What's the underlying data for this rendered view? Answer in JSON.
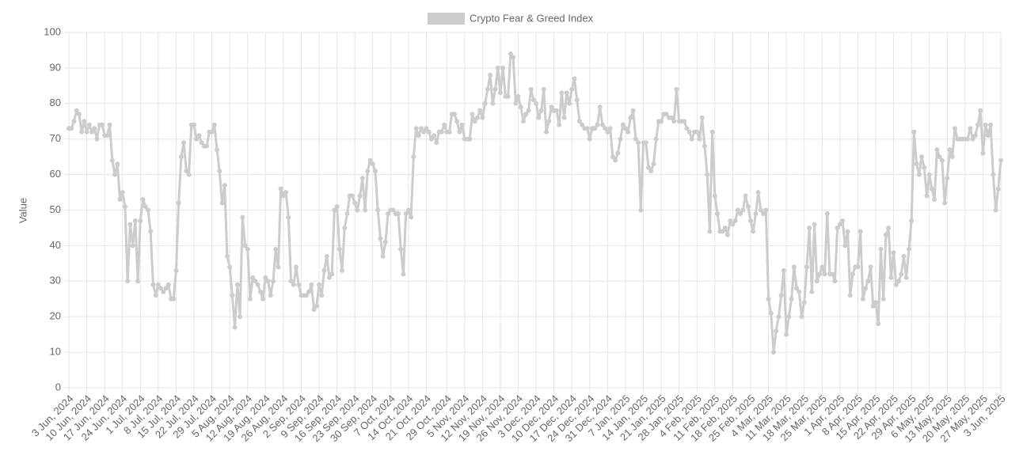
{
  "chart_data": {
    "type": "line",
    "y_label": "Value",
    "ylim": [
      0,
      100
    ],
    "yticks": [
      0,
      10,
      20,
      30,
      40,
      50,
      60,
      70,
      80,
      90,
      100
    ],
    "grid": true,
    "legend": "top",
    "categories": [
      "3 Jun, 2024",
      null,
      null,
      null,
      null,
      null,
      null,
      "10 Jun, 2024",
      null,
      null,
      null,
      null,
      null,
      null,
      "17 Jun, 2024",
      null,
      null,
      null,
      null,
      null,
      null,
      "24 Jun, 2024",
      null,
      null,
      null,
      null,
      null,
      null,
      "1 Jul, 2024",
      null,
      null,
      null,
      null,
      null,
      null,
      "8 Jul, 2024",
      null,
      null,
      null,
      null,
      null,
      null,
      "15 Jul, 2024",
      null,
      null,
      null,
      null,
      null,
      null,
      "22 Jul, 2024",
      null,
      null,
      null,
      null,
      null,
      null,
      "29 Jul, 2024",
      null,
      null,
      null,
      null,
      null,
      null,
      "5 Aug, 2024",
      null,
      null,
      null,
      null,
      null,
      null,
      "12 Aug, 2024",
      null,
      null,
      null,
      null,
      null,
      null,
      "19 Aug, 2024",
      null,
      null,
      null,
      null,
      null,
      null,
      "26 Aug, 2024",
      null,
      null,
      null,
      null,
      null,
      null,
      "2 Sep, 2024",
      null,
      null,
      null,
      null,
      null,
      null,
      "9 Sep, 2024",
      null,
      null,
      null,
      null,
      null,
      null,
      "16 Sep, 2024",
      null,
      null,
      null,
      null,
      null,
      null,
      "23 Sep, 2024",
      null,
      null,
      null,
      null,
      null,
      null,
      "30 Sep, 2024",
      null,
      null,
      null,
      null,
      null,
      null,
      "7 Oct, 2024",
      null,
      null,
      null,
      null,
      null,
      null,
      "14 Oct, 2024",
      null,
      null,
      null,
      null,
      null,
      null,
      "21 Oct, 2024",
      null,
      null,
      null,
      null,
      null,
      null,
      null,
      "29 Oct, 2024",
      null,
      null,
      null,
      null,
      null,
      null,
      "5 Nov, 2024",
      null,
      null,
      null,
      null,
      null,
      null,
      "12 Nov, 2024",
      null,
      null,
      null,
      null,
      null,
      null,
      "19 Nov, 2024",
      null,
      null,
      null,
      null,
      null,
      null,
      "26 Nov, 2024",
      null,
      null,
      null,
      null,
      null,
      null,
      "3 Dec, 2024",
      null,
      null,
      null,
      null,
      null,
      null,
      "10 Dec, 2024",
      null,
      null,
      null,
      null,
      null,
      null,
      "17 Dec, 2024",
      null,
      null,
      null,
      null,
      null,
      null,
      "24 Dec, 2024",
      null,
      null,
      null,
      null,
      null,
      null,
      "31 Dec, 2024",
      null,
      null,
      null,
      null,
      null,
      null,
      "7 Jan, 2025",
      null,
      null,
      null,
      null,
      null,
      null,
      "14 Jan, 2025",
      null,
      null,
      null,
      null,
      null,
      null,
      "21 Jan, 2025",
      null,
      null,
      null,
      null,
      null,
      null,
      "28 Jan, 2025",
      null,
      null,
      null,
      null,
      null,
      null,
      "4 Feb, 2025",
      null,
      null,
      null,
      null,
      null,
      null,
      "11 Feb, 2025",
      null,
      null,
      null,
      null,
      null,
      null,
      "18 Feb, 2025",
      null,
      null,
      null,
      null,
      null,
      null,
      "25 Feb, 2025",
      null,
      null,
      null,
      null,
      null,
      null,
      "4 Mar, 2025",
      null,
      null,
      null,
      null,
      null,
      null,
      "11 Mar, 2025",
      null,
      null,
      null,
      null,
      null,
      null,
      "18 Mar, 2025",
      null,
      null,
      null,
      null,
      null,
      null,
      "25 Mar, 2025",
      null,
      null,
      null,
      null,
      null,
      null,
      "1 Apr, 2025",
      null,
      null,
      null,
      null,
      null,
      null,
      "8 Apr, 2025",
      null,
      null,
      null,
      null,
      null,
      null,
      "15 Apr, 2025",
      null,
      null,
      null,
      null,
      null,
      null,
      "22 Apr, 2025",
      null,
      null,
      null,
      null,
      null,
      null,
      "29 Apr, 2025",
      null,
      null,
      null,
      null,
      null,
      null,
      "6 May, 2025",
      null,
      null,
      null,
      null,
      null,
      null,
      "13 May, 2025",
      null,
      null,
      null,
      null,
      null,
      null,
      "20 May, 2025",
      null,
      null,
      null,
      null,
      null,
      null,
      "27 May, 2025",
      null,
      null,
      null,
      null,
      null,
      null,
      "3 Jun, 2025"
    ],
    "series": [
      {
        "name": "Crypto Fear & Greed Index",
        "color": "#cccccc",
        "values": [
          73,
          73,
          75,
          78,
          77,
          72,
          75,
          72,
          74,
          72,
          73,
          70,
          74,
          74,
          71,
          71,
          74,
          64,
          60,
          63,
          53,
          55,
          51,
          30,
          46,
          40,
          47,
          30,
          47,
          53,
          51,
          50,
          44,
          29,
          26,
          29,
          28,
          27,
          28,
          29,
          25,
          25,
          33,
          52,
          65,
          69,
          61,
          60,
          74,
          74,
          70,
          71,
          69,
          68,
          68,
          72,
          72,
          74,
          67,
          61,
          52,
          57,
          37,
          34,
          26,
          17,
          29,
          20,
          48,
          40,
          39,
          25,
          31,
          30,
          29,
          27,
          25,
          31,
          30,
          26,
          30,
          39,
          34,
          56,
          54,
          55,
          48,
          30,
          29,
          34,
          29,
          26,
          26,
          26,
          27,
          29,
          22,
          23,
          29,
          26,
          33,
          37,
          31,
          32,
          50,
          51,
          39,
          33,
          45,
          49,
          54,
          54,
          52,
          50,
          54,
          59,
          50,
          61,
          64,
          63,
          61,
          50,
          42,
          37,
          41,
          49,
          50,
          50,
          49,
          49,
          39,
          32,
          49,
          50,
          48,
          65,
          73,
          71,
          73,
          72,
          73,
          72,
          70,
          71,
          69,
          72,
          72,
          74,
          72,
          72,
          77,
          77,
          75,
          72,
          74,
          70,
          70,
          70,
          77,
          75,
          76,
          78,
          76,
          80,
          84,
          88,
          80,
          84,
          90,
          83,
          90,
          82,
          82,
          94,
          93,
          80,
          82,
          79,
          75,
          77,
          78,
          84,
          81,
          80,
          76,
          78,
          84,
          72,
          75,
          79,
          78,
          78,
          74,
          83,
          76,
          83,
          80,
          84,
          87,
          81,
          75,
          74,
          73,
          73,
          70,
          73,
          73,
          74,
          79,
          74,
          73,
          72,
          73,
          65,
          64,
          66,
          70,
          74,
          73,
          72,
          76,
          78,
          70,
          69,
          50,
          69,
          69,
          62,
          61,
          63,
          70,
          75,
          75,
          77,
          77,
          76,
          76,
          75,
          84,
          75,
          75,
          75,
          73,
          72,
          70,
          72,
          72,
          70,
          76,
          68,
          60,
          44,
          72,
          54,
          49,
          44,
          44,
          45,
          43,
          47,
          46,
          47,
          50,
          49,
          50,
          54,
          51,
          47,
          44,
          49,
          55,
          50,
          49,
          50,
          25,
          21,
          10,
          16,
          20,
          26,
          33,
          15,
          20,
          25,
          34,
          28,
          27,
          20,
          24,
          34,
          45,
          27,
          46,
          30,
          32,
          34,
          32,
          49,
          32,
          32,
          30,
          45,
          46,
          47,
          40,
          44,
          26,
          32,
          34,
          34,
          44,
          25,
          28,
          30,
          34,
          23,
          24,
          18,
          39,
          25,
          43,
          45,
          31,
          38,
          29,
          30,
          32,
          37,
          31,
          39,
          47,
          72,
          63,
          60,
          65,
          62,
          54,
          60,
          56,
          53,
          67,
          65,
          64,
          52,
          59,
          67,
          65,
          73,
          70,
          70,
          70,
          70,
          70,
          73,
          70,
          71,
          74,
          78,
          66,
          74,
          71,
          74,
          60,
          50,
          56,
          64
        ]
      }
    ]
  }
}
